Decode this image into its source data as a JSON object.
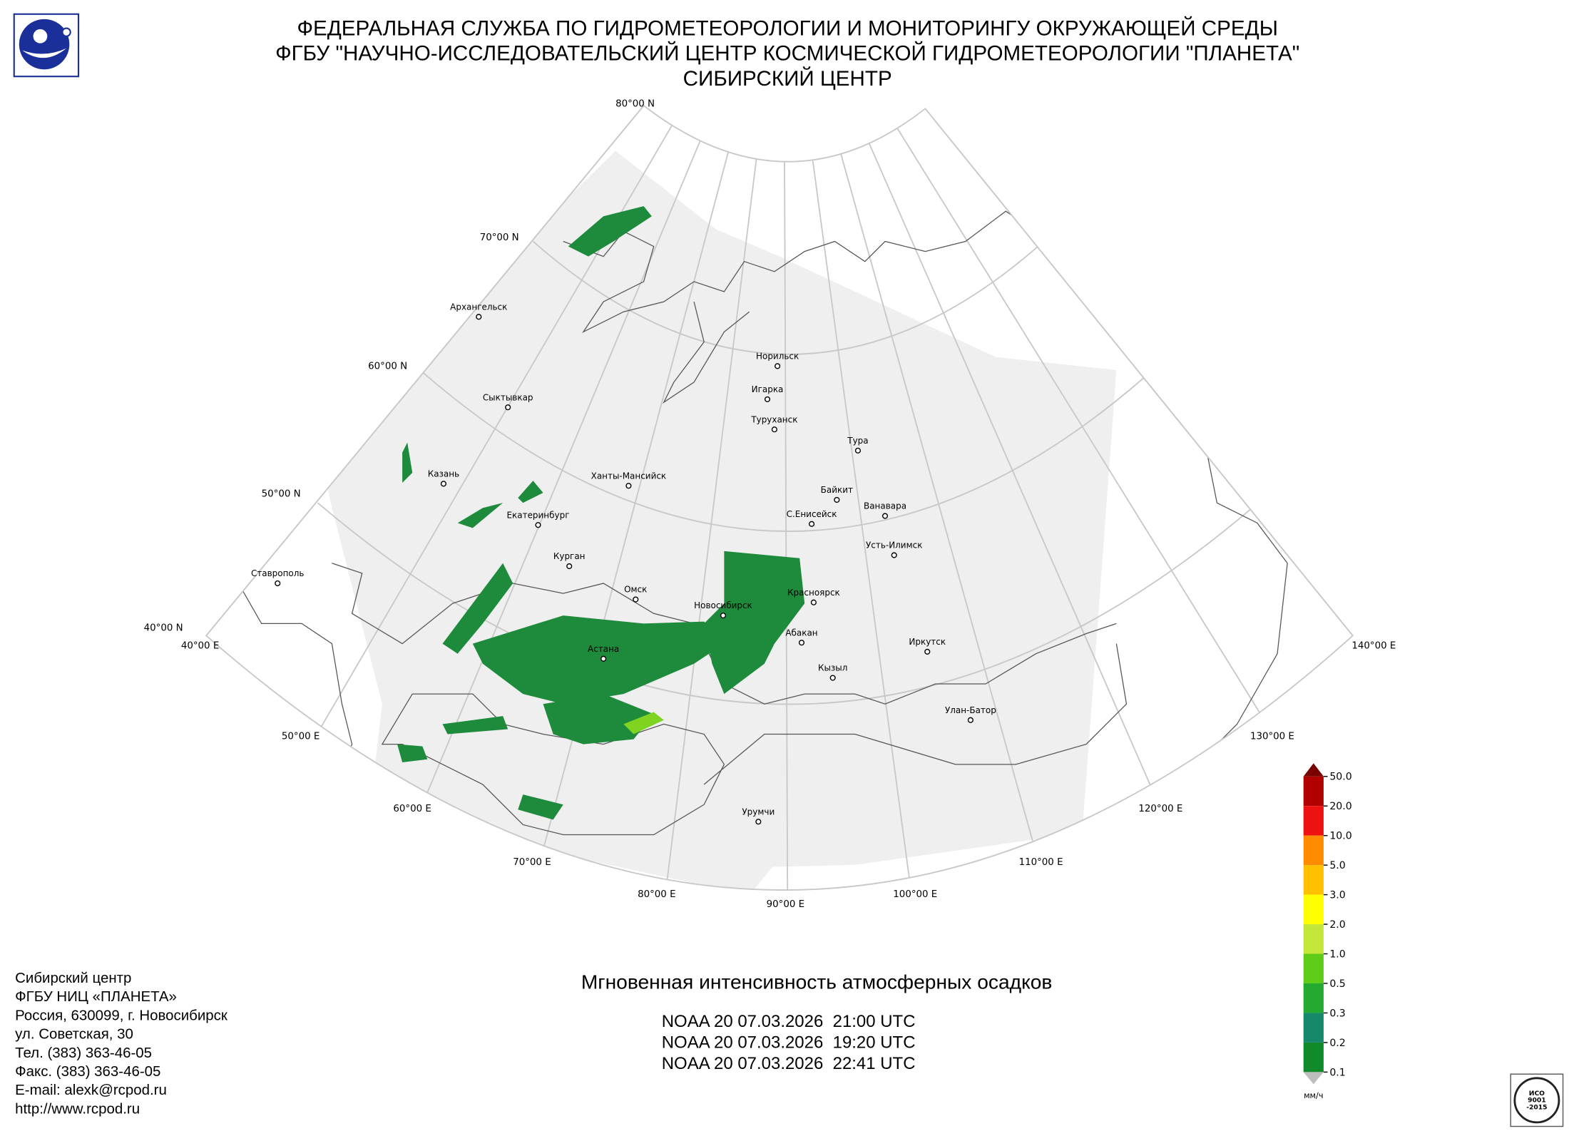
{
  "header": {
    "line1": "ФЕДЕРАЛЬНАЯ СЛУЖБА ПО ГИДРОМЕТЕОРОЛОГИИ И МОНИТОРИНГУ ОКРУЖАЮЩЕЙ СРЕДЫ",
    "line2": "ФГБУ \"НАУЧНО-ИССЛЕДОВАТЕЛЬСКИЙ ЦЕНТР КОСМИЧЕСКОЙ ГИДРОМЕТЕОРОЛОГИИ \"ПЛАНЕТА\"",
    "line3": "СИБИРСКИЙ ЦЕНТР"
  },
  "map": {
    "lat_labels": [
      "80°00 N",
      "70°00 N",
      "60°00 N",
      "50°00 N",
      "40°00 N"
    ],
    "lon_labels": [
      "40°00 E",
      "50°00 E",
      "60°00 E",
      "70°00 E",
      "80°00 E",
      "90°00 E",
      "100°00 E",
      "110°00 E",
      "120°00 E",
      "130°00 E",
      "140°00 E"
    ],
    "cities": [
      "Архангельск",
      "Сыктывкар",
      "Казань",
      "Екатеринбург",
      "Ханты-Мансийск",
      "Норильск",
      "Игарка",
      "Туруханск",
      "Тура",
      "Байкит",
      "Ванавара",
      "С.Енисейск",
      "Усть-Илимск",
      "Курган",
      "Омск",
      "Ставрополь",
      "Новосибирск",
      "Красноярск",
      "Абакан",
      "Астана",
      "Иркутск",
      "Кызыл",
      "Улан-Батор",
      "Урумчи"
    ]
  },
  "title": "Мгновенная интенсивность атмосферных осадков",
  "passes": [
    "NOAA 20 07.03.2026  21:00 UTC",
    "NOAA 20 07.03.2026  19:20 UTC",
    "NOAA 20 07.03.2026  22:41 UTC"
  ],
  "footer": [
    "Сибирский центр",
    "ФГБУ НИЦ «ПЛАНЕТА»",
    "Россия, 630099, г. Новосибирск",
    "ул. Советская, 30",
    "Тел. (383) 363-46-05",
    "Факс. (383) 363-46-05",
    "E-mail: alexk@rcpod.ru",
    "http://www.rcpod.ru"
  ],
  "legend": {
    "unit": "мм/ч",
    "ticks": [
      {
        "value": 50,
        "label": "50.0"
      },
      {
        "value": 20,
        "label": "20.0"
      },
      {
        "value": 10,
        "label": "10.0"
      },
      {
        "value": 5,
        "label": "5.0"
      },
      {
        "value": 3,
        "label": "3.0"
      },
      {
        "value": 2,
        "label": "2.0"
      },
      {
        "value": 1,
        "label": "1.0"
      },
      {
        "value": 0.5,
        "label": "0.5"
      },
      {
        "value": 0.3,
        "label": "0.3"
      },
      {
        "value": 0.2,
        "label": "0.2"
      },
      {
        "value": 0.1,
        "label": "0.1"
      }
    ],
    "colors": [
      "#b00000",
      "#ee1111",
      "#ff8c00",
      "#ffc000",
      "#ffff00",
      "#c4e639",
      "#5fcc1a",
      "#24aa30",
      "#15896a",
      "#118a2c"
    ],
    "over_color": "#7a0000",
    "under_color": "#bdbdbd"
  },
  "badge": [
    "ИСО",
    "9001",
    "-2015"
  ]
}
